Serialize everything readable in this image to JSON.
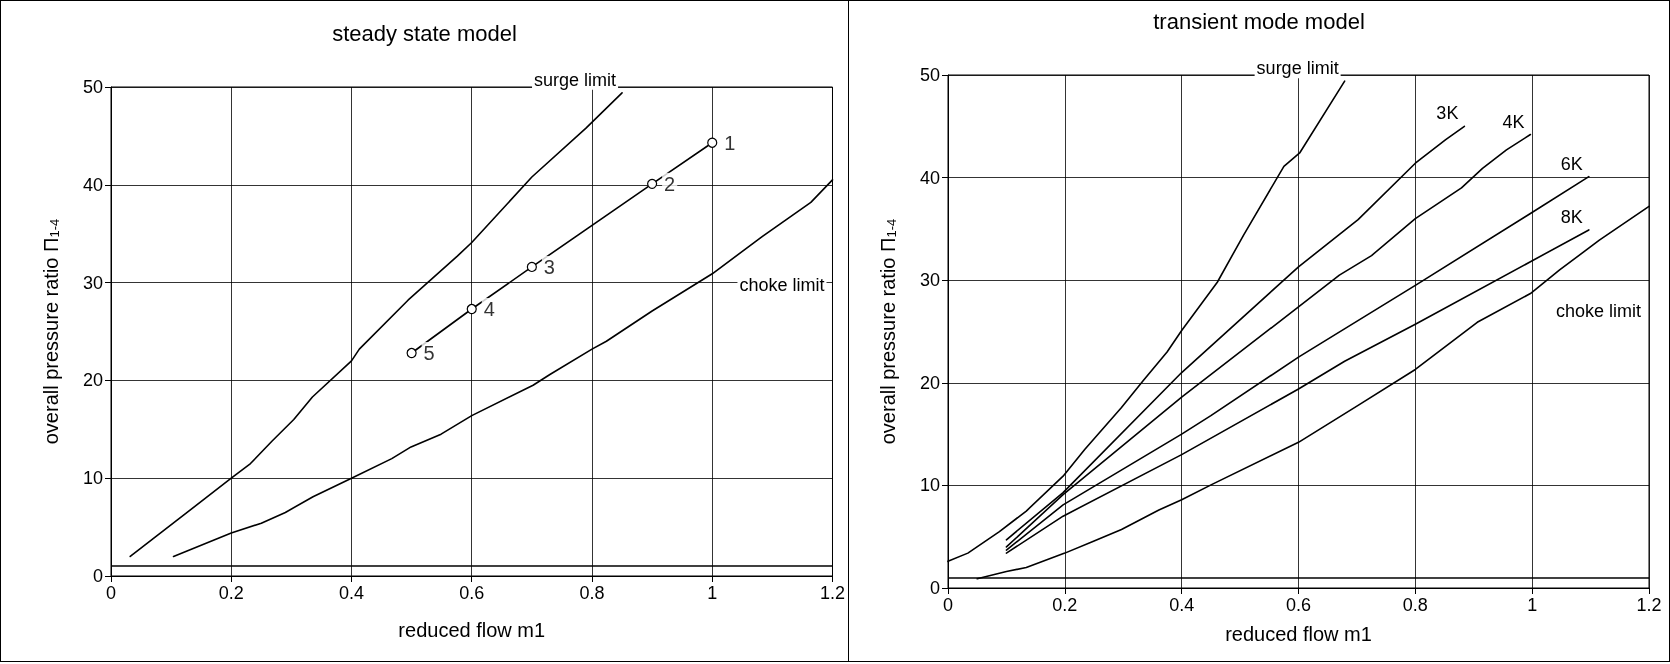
{
  "chart_data": [
    {
      "type": "line",
      "title": "steady state model",
      "xlabel": "reduced flow m1",
      "ylabel": "overall pressure ratio Π$_{1-4}$",
      "xlim": [
        0,
        1.2
      ],
      "xticks": [
        0,
        0.2,
        0.4,
        0.6,
        0.8,
        1,
        1.2
      ],
      "ylim": [
        0,
        50
      ],
      "yticks": [
        0,
        10,
        20,
        30,
        40,
        50
      ],
      "grid": true,
      "marker": "none",
      "line_style": "solid",
      "series": [
        {
          "name": "surge limit",
          "color": "#000000",
          "x": [
            0.032,
            0.2,
            0.232,
            0.268,
            0.304,
            0.335,
            0.4,
            0.413,
            0.494,
            0.576,
            0.6,
            0.7,
            0.79,
            0.85
          ],
          "values": [
            2.0,
            10,
            11.5,
            13.8,
            16,
            18.3,
            22,
            23.2,
            28.2,
            32.7,
            34.1,
            40.8,
            45.8,
            49.4
          ]
        },
        {
          "name": "choke limit",
          "color": "#000000",
          "x": [
            0.104,
            0.2,
            0.25,
            0.29,
            0.336,
            0.4,
            0.467,
            0.499,
            0.549,
            0.6,
            0.702,
            0.73,
            0.8,
            0.824,
            0.9,
            1.0,
            1.083,
            1.164,
            1.2
          ],
          "values": [
            2.0,
            4.4,
            5.4,
            6.5,
            8.1,
            10,
            12.0,
            13.2,
            14.5,
            16.4,
            19.5,
            20.6,
            23.2,
            24.0,
            27.1,
            30.9,
            34.7,
            38.2,
            40.5
          ]
        },
        {
          "color": "#000000",
          "marker": "circle",
          "x": [
            0.5,
            0.6,
            0.7,
            0.9,
            1.0
          ],
          "values": [
            22.8,
            27.3,
            31.6,
            40.1,
            44.3
          ]
        }
      ],
      "ref_lines": [
        {
          "axis": "y",
          "value": 1,
          "color": "#000000"
        }
      ],
      "annotations": [
        {
          "text": "1",
          "x": 1.0,
          "y": 44.3
        },
        {
          "text": "2",
          "x": 0.9,
          "y": 40.1
        },
        {
          "text": "3",
          "x": 0.7,
          "y": 31.6
        },
        {
          "text": "4",
          "x": 0.6,
          "y": 27.3
        },
        {
          "text": "5",
          "x": 0.5,
          "y": 22.8
        }
      ]
    },
    {
      "type": "line",
      "title": "transient mode model",
      "xlabel": "reduced flow m1",
      "ylabel": "overall pressure ratio Π$_{1-4}$",
      "xlim": [
        0,
        1.2
      ],
      "xticks": [
        0,
        0.2,
        0.4,
        0.6,
        0.8,
        1,
        1.2
      ],
      "ylim": [
        0,
        50
      ],
      "yticks": [
        0,
        10,
        20,
        30,
        40,
        50
      ],
      "grid": true,
      "marker": "none",
      "line_style": "solid",
      "series": [
        {
          "name": "surge limit",
          "color": "#000000",
          "x": [
            0,
            0.034,
            0.088,
            0.134,
            0.197,
            0.234,
            0.297,
            0.334,
            0.375,
            0.4,
            0.461,
            0.506,
            0.575,
            0.602,
            0.679
          ],
          "values": [
            2.6,
            3.4,
            5.5,
            7.5,
            10.9,
            13.5,
            17.6,
            20.2,
            23.0,
            25.1,
            29.8,
            34.4,
            41.1,
            42.4,
            49.4
          ]
        },
        {
          "name": "3K",
          "color": "#000000",
          "x": [
            0.1,
            0.197,
            0.4,
            0.6,
            0.702,
            0.8,
            0.852,
            0.884
          ],
          "values": [
            4.7,
            9.3,
            21.0,
            31.3,
            35.9,
            41.4,
            43.7,
            45.0
          ]
        },
        {
          "name": "4K",
          "color": "#000000",
          "x": [
            0.1,
            0.197,
            0.4,
            0.6,
            0.67,
            0.725,
            0.8,
            0.879,
            0.915,
            0.956,
            0.997
          ],
          "values": [
            4.0,
            9.1,
            18.6,
            27.4,
            30.5,
            32.4,
            36.0,
            39.0,
            40.9,
            42.7,
            44.2
          ]
        },
        {
          "name": "6K",
          "color": "#000000",
          "x": [
            0.1,
            0.197,
            0.4,
            0.45,
            0.6,
            0.8,
            0.997,
            1.097
          ],
          "values": [
            3.7,
            8.1,
            15.0,
            16.8,
            22.5,
            29.5,
            36.5,
            40.1
          ]
        },
        {
          "name": "8K",
          "color": "#000000",
          "x": [
            0.1,
            0.197,
            0.4,
            0.6,
            0.679,
            0.8,
            0.997,
            1.097
          ],
          "values": [
            3.4,
            7.0,
            13.0,
            19.4,
            22.1,
            25.7,
            31.8,
            34.9
          ]
        },
        {
          "name": "choke limit",
          "color": "#000000",
          "x": [
            0.05,
            0.1,
            0.134,
            0.2,
            0.247,
            0.297,
            0.361,
            0.4,
            0.452,
            0.6,
            0.702,
            0.8,
            0.906,
            0.997,
            1.047,
            1.115,
            1.2
          ],
          "values": [
            0.9,
            1.6,
            2.0,
            3.4,
            4.5,
            5.7,
            7.6,
            8.6,
            10.1,
            14.2,
            17.8,
            21.3,
            25.9,
            28.7,
            31.0,
            33.9,
            37.2
          ]
        }
      ],
      "ref_lines": [
        {
          "axis": "y",
          "value": 1,
          "color": "#000000"
        }
      ]
    }
  ]
}
